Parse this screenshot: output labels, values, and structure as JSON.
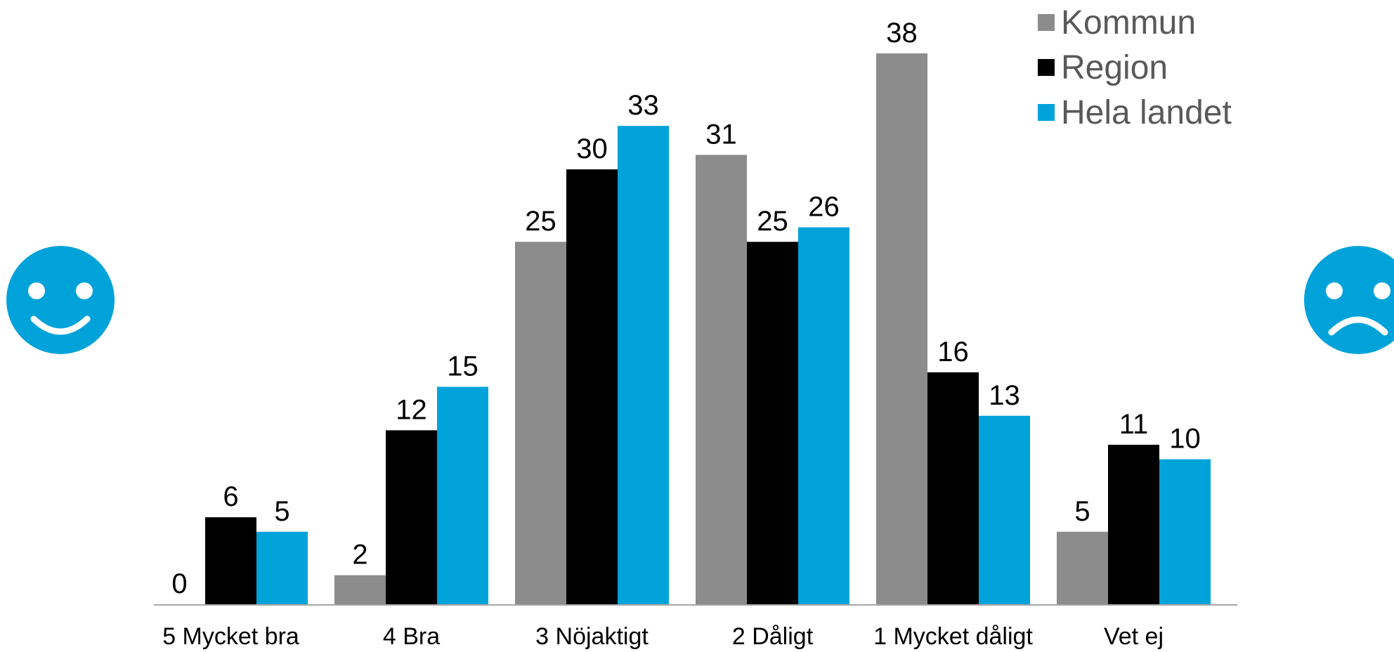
{
  "chart_data": {
    "type": "bar",
    "categories": [
      "5 Mycket bra",
      "4 Bra",
      "3 Nöjaktigt",
      "2 Dåligt",
      "1 Mycket dåligt",
      "Vet ej"
    ],
    "series": [
      {
        "name": "Kommun",
        "values": [
          0,
          2,
          25,
          31,
          38,
          5
        ],
        "color": "#8c8c8c"
      },
      {
        "name": "Region",
        "values": [
          6,
          12,
          30,
          25,
          16,
          11
        ],
        "color": "#000000"
      },
      {
        "name": "Hela landet",
        "values": [
          5,
          15,
          33,
          26,
          13,
          10
        ],
        "color": "#00a3d9"
      }
    ],
    "ylim": [
      0,
      38
    ],
    "grid": false,
    "legend_position": "top-right",
    "axis_color": "#a6a6a6"
  },
  "icons": {
    "left": "smiley-happy-icon",
    "right": "smiley-sad-icon",
    "color": "#00a3d9"
  }
}
